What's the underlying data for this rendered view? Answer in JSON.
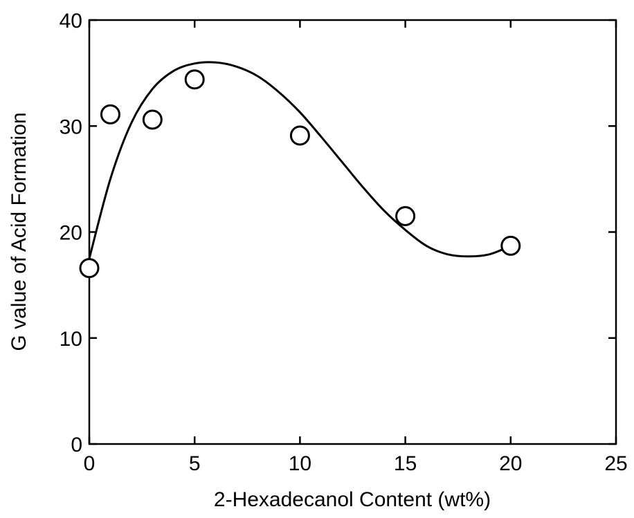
{
  "chart_data": {
    "type": "scatter",
    "title": "",
    "xlabel": "2-Hexadecanol Content (wt%)",
    "ylabel": "G value of Acid Formation",
    "xlim": [
      0,
      25
    ],
    "ylim": [
      0,
      40
    ],
    "xticks": [
      0,
      5,
      10,
      15,
      20,
      25
    ],
    "yticks": [
      0,
      10,
      20,
      30,
      40
    ],
    "xtick_labels": [
      "0",
      "5",
      "10",
      "15",
      "20",
      "25"
    ],
    "ytick_labels": [
      "0",
      "10",
      "20",
      "30",
      "40"
    ],
    "grid": false,
    "legend": "none",
    "series": [
      {
        "marker": "open-circle",
        "x": [
          0,
          1,
          3,
          5,
          10,
          15,
          20
        ],
        "y": [
          16.6,
          31.1,
          30.6,
          34.4,
          29.1,
          21.5,
          18.7
        ]
      }
    ],
    "fit_curve": {
      "style": "smooth-line",
      "x": [
        0,
        1,
        2,
        3,
        4,
        5,
        6,
        7,
        8,
        9,
        10,
        11,
        12,
        13,
        14,
        15,
        16,
        17,
        18,
        19,
        20
      ],
      "y": [
        17.5,
        25.0,
        30.3,
        33.5,
        35.2,
        35.9,
        36.0,
        35.6,
        34.7,
        33.2,
        31.3,
        29.0,
        26.6,
        24.2,
        22.0,
        20.2,
        18.7,
        17.9,
        17.7,
        17.9,
        18.7
      ]
    }
  }
}
